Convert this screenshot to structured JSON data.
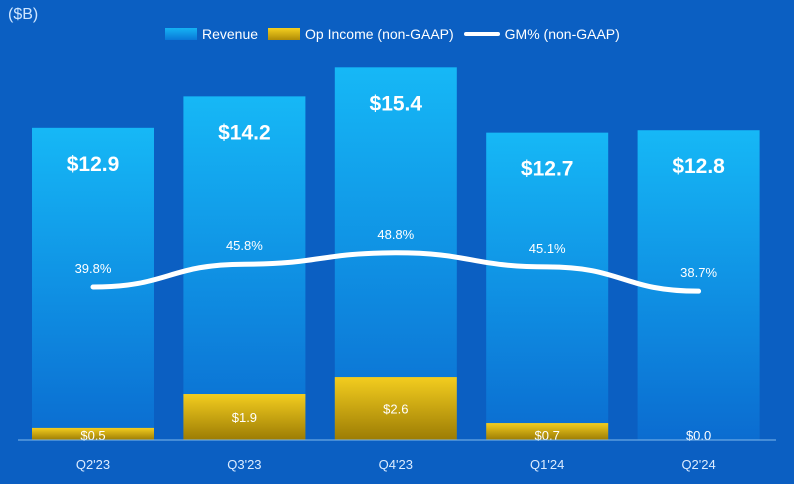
{
  "chart_data": {
    "type": "bar",
    "unit_label": "($B)",
    "categories": [
      "Q2'23",
      "Q3'23",
      "Q4'23",
      "Q1'24",
      "Q2'24"
    ],
    "series": [
      {
        "name": "Revenue",
        "values": [
          12.9,
          14.2,
          15.4,
          12.7,
          12.8
        ],
        "labels": [
          "$12.9",
          "$14.2",
          "$15.4",
          "$12.7",
          "$12.8"
        ],
        "color": "#13aef2"
      },
      {
        "name": "Op Income (non-GAAP)",
        "values": [
          0.5,
          1.9,
          2.6,
          0.7,
          0.0
        ],
        "labels": [
          "$0.5",
          "$1.9",
          "$2.6",
          "$0.7",
          "$0.0"
        ],
        "color": "#e6bf12"
      },
      {
        "name": "GM% (non-GAAP)",
        "type": "line",
        "values": [
          39.8,
          45.8,
          48.8,
          45.1,
          38.7
        ],
        "labels": [
          "39.8%",
          "45.8%",
          "48.8%",
          "45.1%",
          "38.7%"
        ],
        "color": "#ffffff"
      }
    ],
    "legend": "top",
    "grid": false
  }
}
